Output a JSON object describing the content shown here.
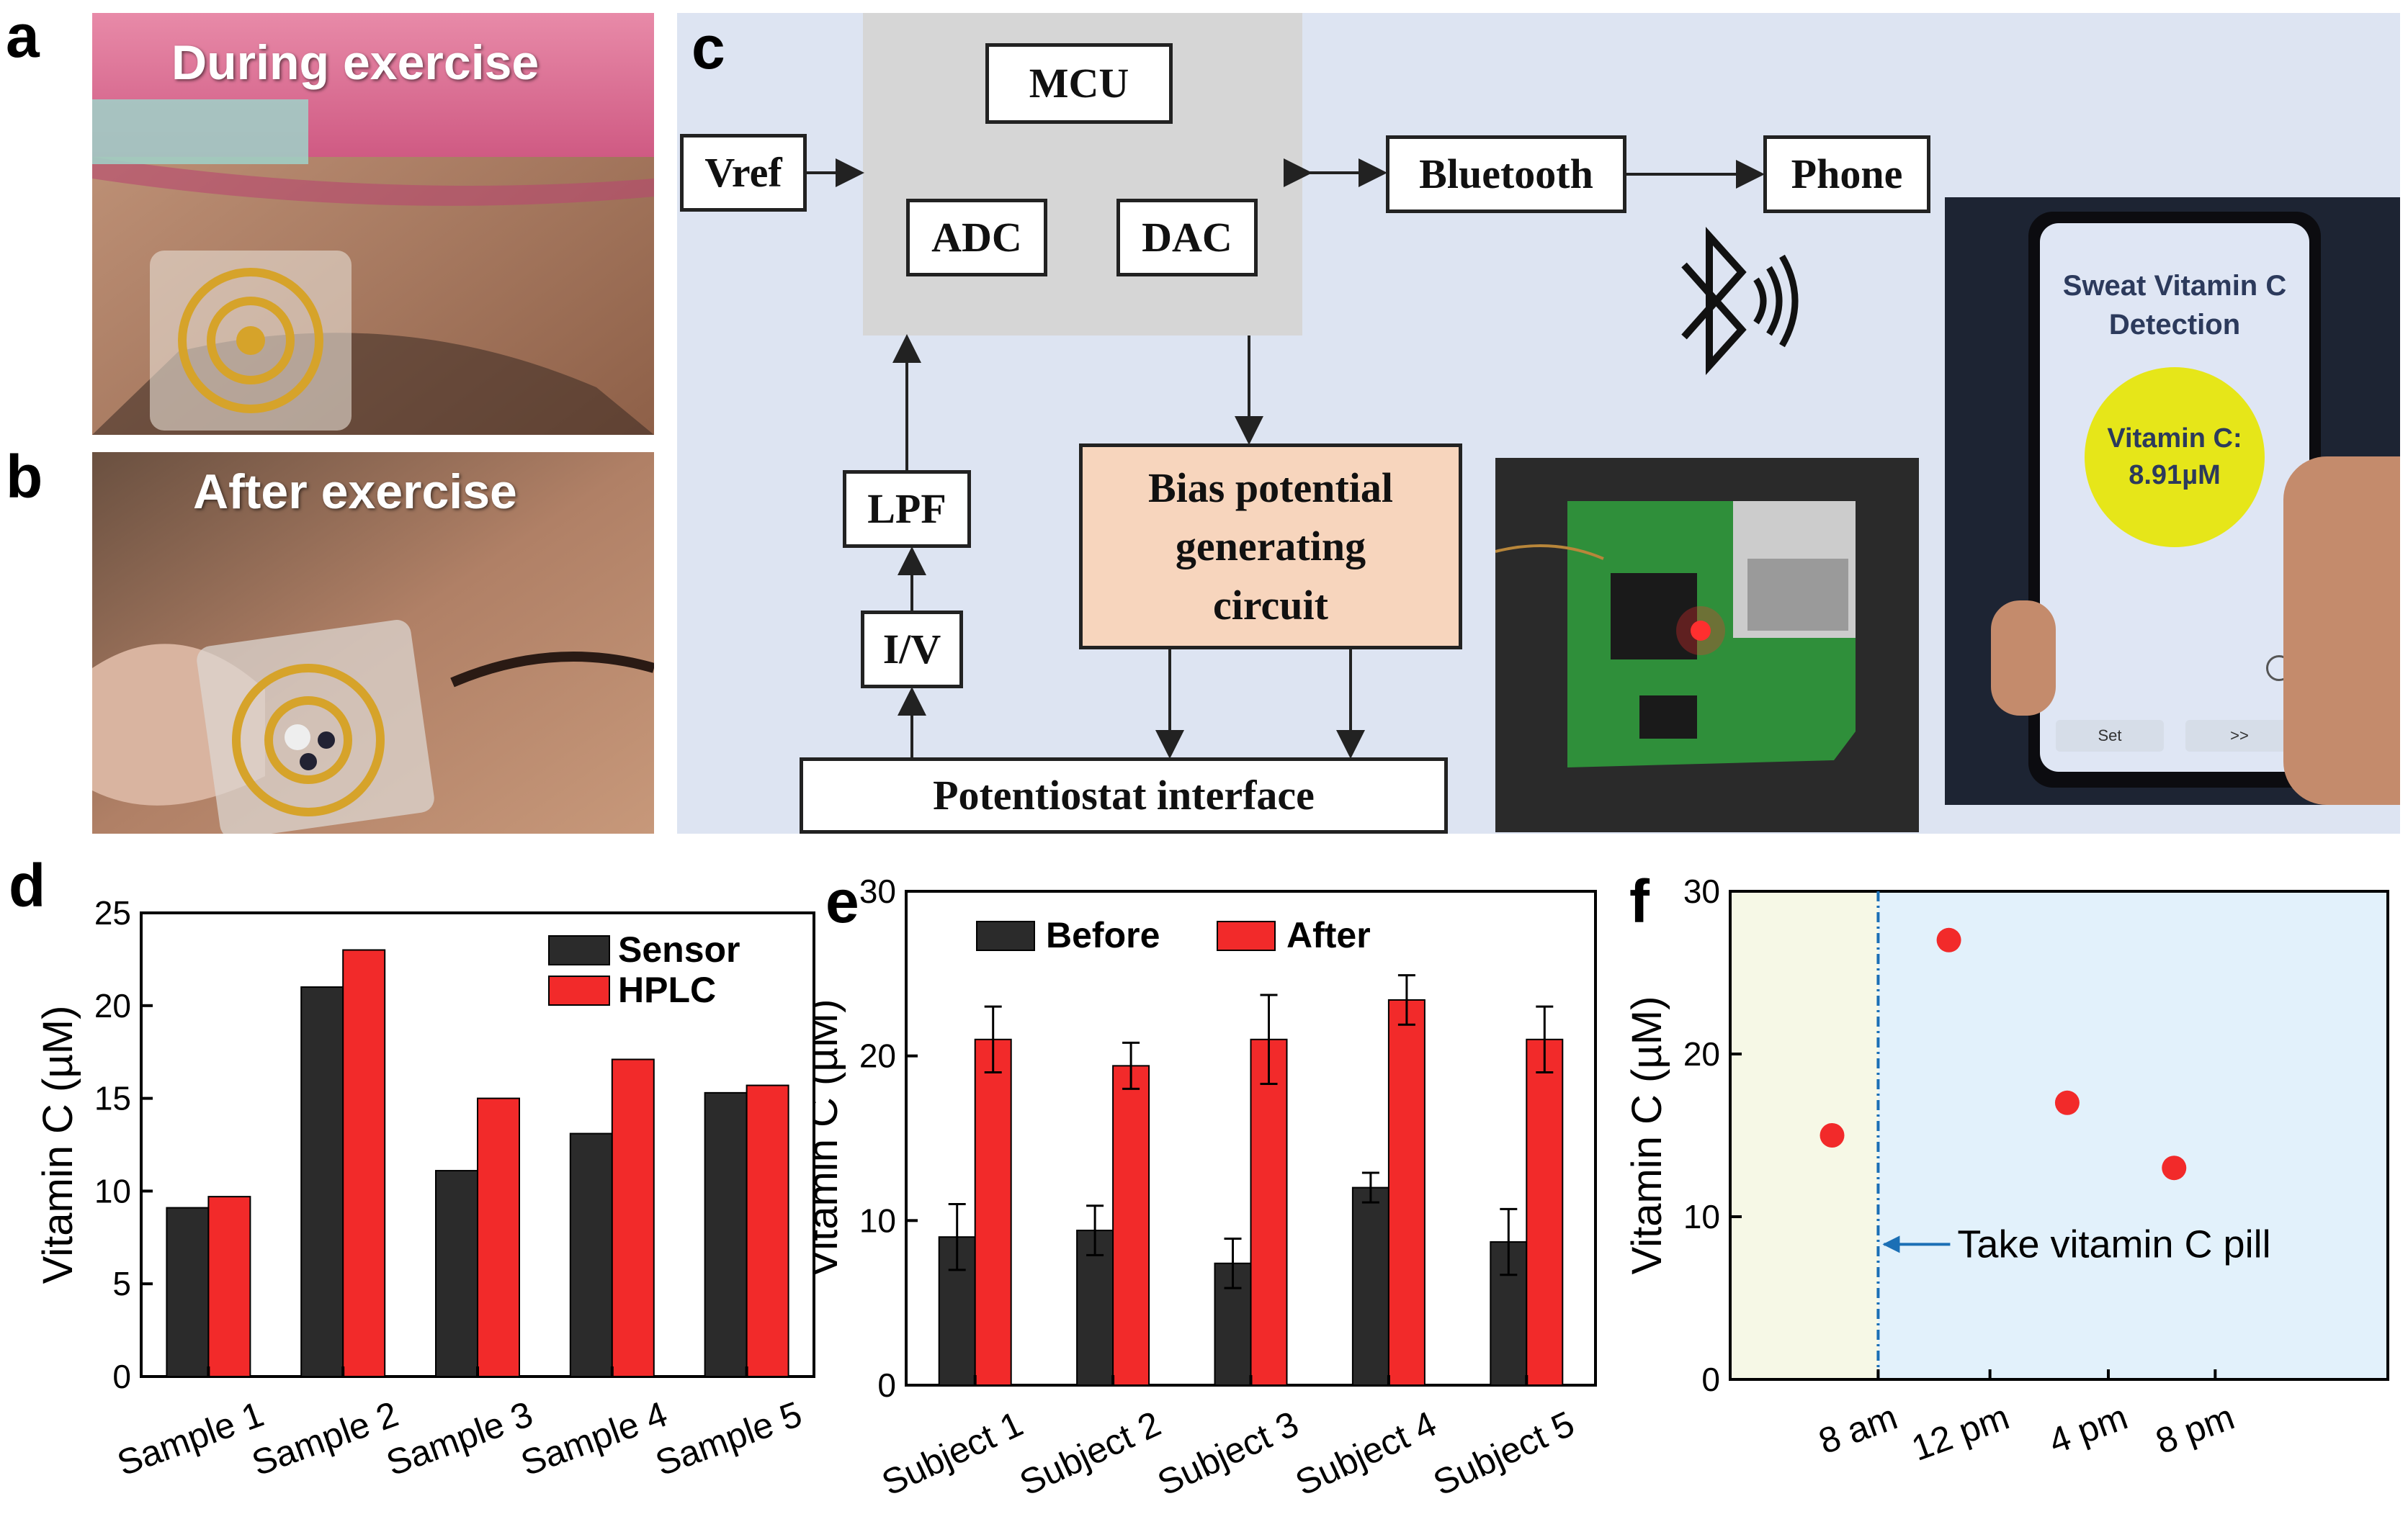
{
  "panel_labels": {
    "a": "a",
    "b": "b",
    "c": "c",
    "d": "d",
    "e": "e",
    "f": "f"
  },
  "photo_a": {
    "caption": "During exercise"
  },
  "photo_b": {
    "caption": "After exercise"
  },
  "diagram": {
    "mcu": "MCU",
    "adc": "ADC",
    "dac": "DAC",
    "vref": "Vref",
    "bluetooth": "Bluetooth",
    "phone": "Phone",
    "lpf": "LPF",
    "iv": "I/V",
    "bias_line1": "Bias potential",
    "bias_line2": "generating",
    "bias_line3": "circuit",
    "potentiostat": "Potentiostat interface"
  },
  "phone_app": {
    "title_line1": "Sweat Vitamin C",
    "title_line2": "Detection",
    "result_label": "Vitamin C:",
    "result_value": "8.91µM",
    "button_left": "Set",
    "button_right": ">>"
  },
  "colors": {
    "dark_bar": "#2b2b2b",
    "red": "#f22a2a",
    "panel_bg": "#dde4f2",
    "bias_bg": "#f7d5bd",
    "f_left_bg": "#f6f8e6",
    "f_right_bg": "#e2f1fb",
    "f_line": "#1b6fb5"
  },
  "chart_data": [
    {
      "id": "d",
      "type": "bar",
      "categories": [
        "Sample 1",
        "Sample 2",
        "Sample 3",
        "Sample 4",
        "Sample 5"
      ],
      "series": [
        {
          "name": "Sensor",
          "values": [
            9.1,
            21.0,
            11.1,
            13.1,
            15.3
          ]
        },
        {
          "name": "HPLC",
          "values": [
            9.7,
            23.0,
            15.0,
            17.1,
            15.7
          ]
        }
      ],
      "ylabel": "Vitamin C (µM)",
      "ylim": [
        0,
        25
      ],
      "yticks": [
        0,
        5,
        10,
        15,
        20,
        25
      ],
      "legend": "top-right"
    },
    {
      "id": "e",
      "type": "bar",
      "categories": [
        "Subject 1",
        "Subject 2",
        "Subject 3",
        "Subject 4",
        "Subject 5"
      ],
      "series": [
        {
          "name": "Before",
          "values": [
            9.0,
            9.4,
            7.4,
            12.0,
            8.7
          ],
          "errors": [
            2.0,
            1.5,
            1.5,
            0.9,
            2.0
          ]
        },
        {
          "name": "After",
          "values": [
            21.0,
            19.4,
            21.0,
            23.4,
            21.0
          ],
          "errors": [
            2.0,
            1.4,
            2.7,
            1.5,
            2.0
          ]
        }
      ],
      "ylabel": "Vitamin C (µM)",
      "ylim": [
        0,
        30
      ],
      "yticks": [
        0,
        10,
        20,
        30
      ],
      "legend": "top"
    },
    {
      "id": "f",
      "type": "scatter",
      "xticklabels": [
        "8 am",
        "12 pm",
        "4 pm",
        "8 pm"
      ],
      "points": [
        {
          "x": 0.5,
          "y": 15
        },
        {
          "x": 1.5,
          "y": 27
        },
        {
          "x": 2.5,
          "y": 17
        },
        {
          "x": 3.5,
          "y": 13
        }
      ],
      "ylabel": "Vitamin C (µM)",
      "ylim": [
        0,
        30
      ],
      "yticks": [
        0,
        10,
        20,
        30
      ],
      "annotation": "Take vitamin C pill"
    }
  ]
}
